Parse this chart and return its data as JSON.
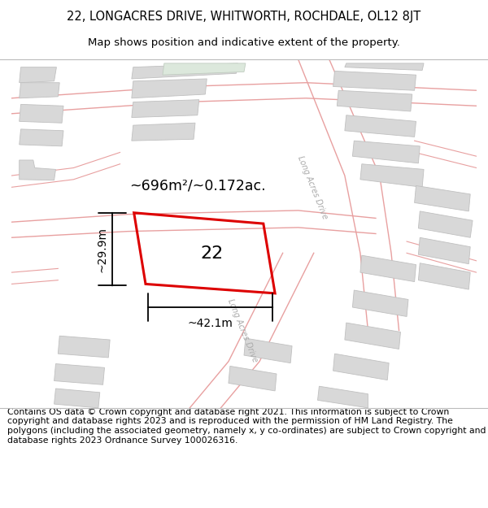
{
  "title": "22, LONGACRES DRIVE, WHITWORTH, ROCHDALE, OL12 8JT",
  "subtitle": "Map shows position and indicative extent of the property.",
  "footer": "Contains OS data © Crown copyright and database right 2021. This information is subject to Crown copyright and database rights 2023 and is reproduced with the permission of HM Land Registry. The polygons (including the associated geometry, namely x, y co-ordinates) are subject to Crown copyright and database rights 2023 Ordnance Survey 100026316.",
  "map_bg": "#ffffff",
  "road_color": "#e8a0a0",
  "plot_color": "#dd0000",
  "building_fill": "#d8d8d8",
  "building_edge": "#c0c0c0",
  "green_fill": "#dce8dc",
  "green_edge": "#c0ccc0",
  "area_label": "~696m²/~0.172ac.",
  "width_label": "~42.1m",
  "height_label": "~29.9m",
  "number_label": "22",
  "road_label_top": "Long Acres Drive",
  "road_label_bottom": "Long Acres Drive",
  "title_fontsize": 10.5,
  "subtitle_fontsize": 9.5,
  "footer_fontsize": 7.8,
  "header_bg": "#ffffff",
  "footer_bg": "#ffffff"
}
